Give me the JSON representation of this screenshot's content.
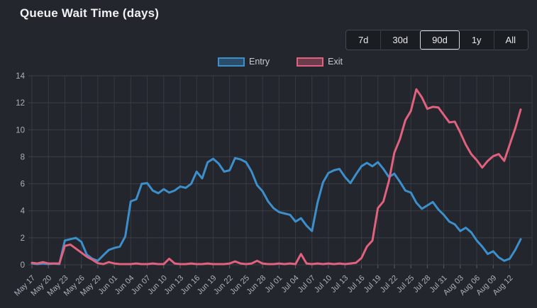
{
  "header": {
    "title": "Queue Wait Time (days)"
  },
  "range_selector": {
    "options": [
      "7d",
      "30d",
      "90d",
      "1y",
      "All"
    ],
    "selected": "90d"
  },
  "legend": {
    "items": [
      {
        "label": "Entry",
        "color": "#3d8fcc"
      },
      {
        "label": "Exit",
        "color": "#e2617e"
      }
    ]
  },
  "colors": {
    "background": "#23262c",
    "grid_horizontal": "#3b3f46",
    "grid_vertical": "#363a42",
    "axis_tick": "#5a5f66",
    "tick_text": "#abb1b9",
    "title_text": "#f1f2f4",
    "legend_text": "#c7ccd2",
    "button_text": "#e8eaec",
    "entry_line": "#3d8fcc",
    "exit_line": "#e2617e"
  },
  "chart_data": {
    "type": "line",
    "title": "Queue Wait Time (days)",
    "grid": true,
    "legend_position": "top",
    "ylim": [
      0,
      14
    ],
    "yticks": [
      0,
      2,
      4,
      6,
      8,
      10,
      12,
      14
    ],
    "x_tick_every": 3,
    "x": [
      "May 17",
      "May 18",
      "May 19",
      "May 20",
      "May 21",
      "May 22",
      "May 23",
      "May 24",
      "May 25",
      "May 26",
      "May 27",
      "May 28",
      "May 29",
      "May 30",
      "May 31",
      "Jun 01",
      "Jun 02",
      "Jun 03",
      "Jun 04",
      "Jun 05",
      "Jun 06",
      "Jun 07",
      "Jun 08",
      "Jun 09",
      "Jun 10",
      "Jun 11",
      "Jun 12",
      "Jun 13",
      "Jun 14",
      "Jun 15",
      "Jun 16",
      "Jun 17",
      "Jun 18",
      "Jun 19",
      "Jun 20",
      "Jun 21",
      "Jun 22",
      "Jun 23",
      "Jun 24",
      "Jun 25",
      "Jun 26",
      "Jun 27",
      "Jun 28",
      "Jun 29",
      "Jun 30",
      "Jul 01",
      "Jul 02",
      "Jul 03",
      "Jul 04",
      "Jul 05",
      "Jul 06",
      "Jul 07",
      "Jul 08",
      "Jul 09",
      "Jul 10",
      "Jul 11",
      "Jul 12",
      "Jul 13",
      "Jul 14",
      "Jul 15",
      "Jul 16",
      "Jul 17",
      "Jul 18",
      "Jul 19",
      "Jul 20",
      "Jul 21",
      "Jul 22",
      "Jul 23",
      "Jul 24",
      "Jul 25",
      "Jul 26",
      "Jul 27",
      "Jul 28",
      "Jul 29",
      "Jul 30",
      "Jul 31",
      "Aug 01",
      "Aug 02",
      "Aug 03",
      "Aug 04",
      "Aug 05",
      "Aug 06",
      "Aug 07",
      "Aug 08",
      "Aug 09",
      "Aug 10",
      "Aug 11",
      "Aug 12",
      "Aug 13",
      "Aug 14"
    ],
    "series": [
      {
        "name": "Entry",
        "color": "#3d8fcc",
        "values": [
          0.1,
          0.05,
          0.1,
          0.05,
          0.1,
          0.05,
          1.8,
          1.9,
          2.0,
          1.7,
          0.75,
          0.45,
          0.3,
          0.7,
          1.1,
          1.25,
          1.35,
          2.1,
          4.7,
          4.85,
          6.0,
          6.05,
          5.5,
          5.3,
          5.6,
          5.35,
          5.5,
          5.8,
          5.7,
          6.0,
          6.9,
          6.4,
          7.6,
          7.85,
          7.5,
          6.9,
          7.0,
          7.9,
          7.8,
          7.6,
          6.9,
          5.9,
          5.45,
          4.7,
          4.2,
          3.9,
          3.8,
          3.7,
          3.2,
          3.45,
          2.9,
          2.5,
          4.6,
          6.1,
          6.8,
          7.0,
          7.1,
          6.5,
          6.05,
          6.7,
          7.3,
          7.55,
          7.3,
          7.6,
          7.1,
          6.5,
          6.75,
          6.15,
          5.5,
          5.35,
          4.6,
          4.15,
          4.4,
          4.65,
          4.1,
          3.7,
          3.2,
          3.0,
          2.5,
          2.75,
          2.4,
          1.8,
          1.35,
          0.8,
          1.0,
          0.55,
          0.3,
          0.45,
          1.1,
          1.9
        ]
      },
      {
        "name": "Exit",
        "color": "#e2617e",
        "values": [
          0.15,
          0.1,
          0.2,
          0.1,
          0.1,
          0.1,
          1.4,
          1.5,
          1.2,
          0.9,
          0.6,
          0.38,
          0.12,
          0.05,
          0.2,
          0.1,
          0.05,
          0.05,
          0.05,
          0.1,
          0.05,
          0.05,
          0.1,
          0.05,
          0.05,
          0.45,
          0.1,
          0.05,
          0.05,
          0.1,
          0.05,
          0.05,
          0.1,
          0.05,
          0.05,
          0.05,
          0.1,
          0.25,
          0.1,
          0.05,
          0.1,
          0.3,
          0.1,
          0.05,
          0.05,
          0.1,
          0.05,
          0.1,
          0.05,
          0.8,
          0.1,
          0.05,
          0.1,
          0.05,
          0.1,
          0.05,
          0.1,
          0.05,
          0.1,
          0.15,
          0.5,
          1.35,
          1.8,
          4.2,
          4.7,
          6.2,
          8.3,
          9.3,
          10.7,
          11.4,
          13.0,
          12.4,
          11.55,
          11.7,
          11.65,
          11.1,
          10.55,
          10.6,
          9.8,
          8.9,
          8.2,
          7.75,
          7.2,
          7.7,
          8.05,
          8.2,
          7.7,
          8.9,
          10.1,
          11.5
        ]
      }
    ]
  }
}
